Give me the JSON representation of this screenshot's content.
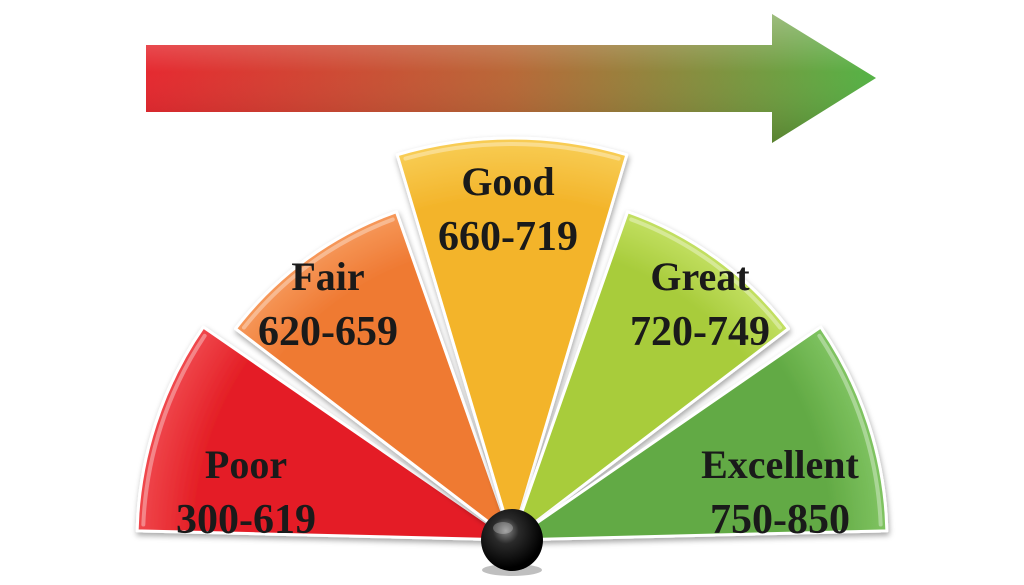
{
  "arrow": {
    "color_start": "#e41f26",
    "color_end": "#4caf3c"
  },
  "gauge": {
    "segments": [
      {
        "label": "Poor",
        "range": "300-619",
        "color": "#e41f26",
        "light": "#f0484d"
      },
      {
        "label": "Fair",
        "range": "620-659",
        "color": "#ef7a33",
        "light": "#f6985a"
      },
      {
        "label": "Good",
        "range": "660-719",
        "color": "#f3b42a",
        "light": "#f8cd55"
      },
      {
        "label": "Great",
        "range": "720-749",
        "color": "#a8cc3b",
        "light": "#c3e063"
      },
      {
        "label": "Excellent",
        "range": "750-850",
        "color": "#62aa44",
        "light": "#80c462"
      }
    ],
    "pivot_color": "#111111"
  }
}
